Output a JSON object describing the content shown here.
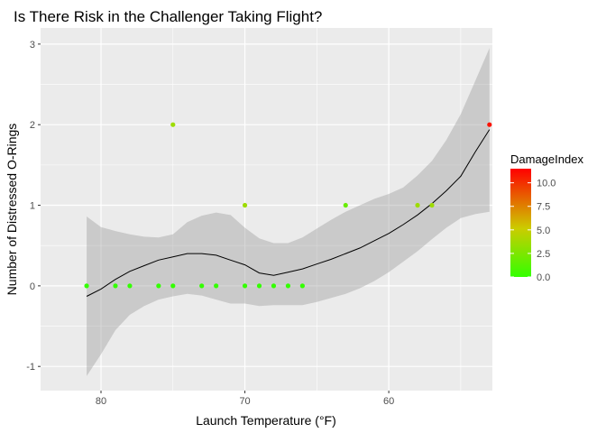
{
  "chart_data": {
    "type": "scatter",
    "title": "Is There Risk in the Challenger Taking Flight?",
    "xlabel": "Launch Temperature (°F)",
    "ylabel": "Number of Distressed O-Rings",
    "x_reversed": true,
    "xlim": [
      84.2,
      52.8
    ],
    "ylim": [
      -1.3,
      3.2
    ],
    "x_ticks": [
      80,
      70,
      60
    ],
    "y_ticks": [
      -1,
      0,
      1,
      2,
      3
    ],
    "grid": true,
    "legend": {
      "title": "DamageIndex",
      "position": "right",
      "min": 0,
      "max": 11.5,
      "ticks": [
        0.0,
        2.5,
        5.0,
        7.5,
        10.0
      ],
      "tick_labels": [
        "0.0",
        "2.5",
        "5.0",
        "7.5",
        "10.0"
      ],
      "low_color": "#33ff00",
      "mid_color": "#cccc00",
      "high_color": "#ff0000"
    },
    "points": [
      {
        "x": 81,
        "y": 0,
        "damage": 0
      },
      {
        "x": 79,
        "y": 0,
        "damage": 0
      },
      {
        "x": 78,
        "y": 0,
        "damage": 0
      },
      {
        "x": 76,
        "y": 0,
        "damage": 0
      },
      {
        "x": 75,
        "y": 0,
        "damage": 0
      },
      {
        "x": 75,
        "y": 2,
        "damage": 4
      },
      {
        "x": 73,
        "y": 0,
        "damage": 0
      },
      {
        "x": 72,
        "y": 0,
        "damage": 0
      },
      {
        "x": 70,
        "y": 0,
        "damage": 0
      },
      {
        "x": 70,
        "y": 1,
        "damage": 4
      },
      {
        "x": 69,
        "y": 0,
        "damage": 0
      },
      {
        "x": 68,
        "y": 0,
        "damage": 0
      },
      {
        "x": 67,
        "y": 0,
        "damage": 0
      },
      {
        "x": 66,
        "y": 0,
        "damage": 0
      },
      {
        "x": 63,
        "y": 1,
        "damage": 2
      },
      {
        "x": 58,
        "y": 1,
        "damage": 4
      },
      {
        "x": 57,
        "y": 1,
        "damage": 4
      },
      {
        "x": 53,
        "y": 2,
        "damage": 11
      }
    ],
    "smooth": {
      "x": [
        81,
        80,
        79,
        78,
        77,
        76,
        75,
        74,
        73,
        72,
        71,
        70,
        69,
        68,
        67,
        66,
        65,
        64,
        63,
        62,
        61,
        60,
        59,
        58,
        57,
        56,
        55,
        54,
        53
      ],
      "y": [
        -0.13,
        -0.04,
        0.08,
        0.18,
        0.25,
        0.32,
        0.36,
        0.4,
        0.4,
        0.38,
        0.32,
        0.26,
        0.16,
        0.13,
        0.17,
        0.21,
        0.27,
        0.33,
        0.4,
        0.47,
        0.56,
        0.65,
        0.76,
        0.88,
        1.02,
        1.18,
        1.36,
        1.66,
        1.94
      ],
      "lower": [
        -1.12,
        -0.85,
        -0.55,
        -0.36,
        -0.25,
        -0.17,
        -0.13,
        -0.1,
        -0.12,
        -0.17,
        -0.22,
        -0.22,
        -0.25,
        -0.24,
        -0.24,
        -0.24,
        -0.2,
        -0.15,
        -0.1,
        -0.03,
        0.06,
        0.17,
        0.3,
        0.43,
        0.58,
        0.72,
        0.84,
        0.89,
        0.92
      ],
      "upper": [
        0.86,
        0.73,
        0.68,
        0.64,
        0.61,
        0.6,
        0.64,
        0.79,
        0.87,
        0.91,
        0.88,
        0.72,
        0.59,
        0.53,
        0.53,
        0.6,
        0.71,
        0.82,
        0.92,
        1.0,
        1.08,
        1.14,
        1.22,
        1.37,
        1.55,
        1.81,
        2.13,
        2.54,
        2.95
      ]
    }
  }
}
